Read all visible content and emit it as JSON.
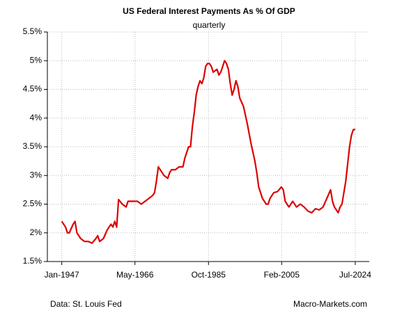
{
  "chart_data": {
    "type": "line",
    "title": "US Federal Interest Payments As % Of GDP",
    "subtitle": "quarterly",
    "source": "Data: St. Louis Fed",
    "credit": "Macro-Markets.com",
    "color": "#dd0000",
    "grid": true,
    "x": [
      1947,
      1948,
      1948.5,
      1949,
      1950,
      1950.5,
      1951,
      1952,
      1953,
      1954,
      1955,
      1956,
      1956.5,
      1957,
      1958,
      1959,
      1960,
      1960.5,
      1961,
      1961.5,
      1962,
      1963,
      1964,
      1964.5,
      1966,
      1967,
      1968,
      1969,
      1970,
      1971,
      1971.5,
      1972,
      1972.5,
      1973,
      1974,
      1975,
      1975.5,
      1976,
      1977,
      1978,
      1979,
      1979.5,
      1980,
      1980.5,
      1981,
      1981.5,
      1982,
      1982.5,
      1983,
      1983.5,
      1984,
      1984.5,
      1985,
      1985.5,
      1986,
      1986.5,
      1987,
      1988,
      1988.5,
      1989,
      1989.5,
      1990,
      1990.5,
      1991,
      1991.5,
      1992,
      1992.5,
      1993,
      1993.5,
      1994,
      1995,
      1996,
      1997,
      1998,
      1998.5,
      1999,
      2000,
      2001,
      2001.5,
      2002,
      2003,
      2004,
      2005,
      2005.5,
      2006,
      2007,
      2008,
      2008.5,
      2009,
      2010,
      2011,
      2012,
      2013,
      2014,
      2015,
      2016,
      2017,
      2018,
      2018.5,
      2019,
      2019.5,
      2020,
      2020.5,
      2021,
      2022,
      2022.5,
      2023,
      2023.5,
      2024,
      2024.5
    ],
    "values": [
      2.2,
      2.1,
      2.0,
      2.0,
      2.15,
      2.2,
      2.0,
      1.9,
      1.85,
      1.85,
      1.82,
      1.9,
      1.95,
      1.85,
      1.9,
      2.05,
      2.15,
      2.1,
      2.2,
      2.1,
      2.58,
      2.5,
      2.45,
      2.55,
      2.55,
      2.55,
      2.5,
      2.55,
      2.6,
      2.65,
      2.7,
      2.9,
      3.15,
      3.1,
      3.0,
      2.95,
      3.05,
      3.1,
      3.1,
      3.15,
      3.15,
      3.3,
      3.4,
      3.5,
      3.5,
      3.85,
      4.1,
      4.4,
      4.55,
      4.65,
      4.6,
      4.7,
      4.9,
      4.95,
      4.95,
      4.9,
      4.8,
      4.85,
      4.75,
      4.8,
      4.9,
      5.0,
      4.95,
      4.85,
      4.6,
      4.4,
      4.5,
      4.65,
      4.55,
      4.35,
      4.2,
      3.9,
      3.55,
      3.25,
      3.05,
      2.8,
      2.6,
      2.5,
      2.5,
      2.6,
      2.7,
      2.72,
      2.8,
      2.75,
      2.55,
      2.45,
      2.55,
      2.5,
      2.45,
      2.5,
      2.45,
      2.38,
      2.35,
      2.42,
      2.4,
      2.45,
      2.6,
      2.75,
      2.55,
      2.45,
      2.4,
      2.35,
      2.45,
      2.5,
      2.9,
      3.2,
      3.5,
      3.7,
      3.8,
      3.8
    ],
    "xlim": [
      1943.2,
      2028.2
    ],
    "xticks": [
      {
        "value": 1947,
        "label": "Jan-1947"
      },
      {
        "value": 1966.33,
        "label": "May-1966"
      },
      {
        "value": 1985.75,
        "label": "Oct-1985"
      },
      {
        "value": 2005.08,
        "label": "Feb-2005"
      },
      {
        "value": 2024.5,
        "label": "Jul-2024"
      }
    ],
    "ylim": [
      1.5,
      5.5
    ],
    "yticks": [
      {
        "value": 1.5,
        "label": "1.5%"
      },
      {
        "value": 2,
        "label": "2%"
      },
      {
        "value": 2.5,
        "label": "2.5%"
      },
      {
        "value": 3,
        "label": "3%"
      },
      {
        "value": 3.5,
        "label": "3.5%"
      },
      {
        "value": 4,
        "label": "4%"
      },
      {
        "value": 4.5,
        "label": "4.5%"
      },
      {
        "value": 5,
        "label": "5%"
      },
      {
        "value": 5.5,
        "label": "5.5%"
      }
    ]
  }
}
